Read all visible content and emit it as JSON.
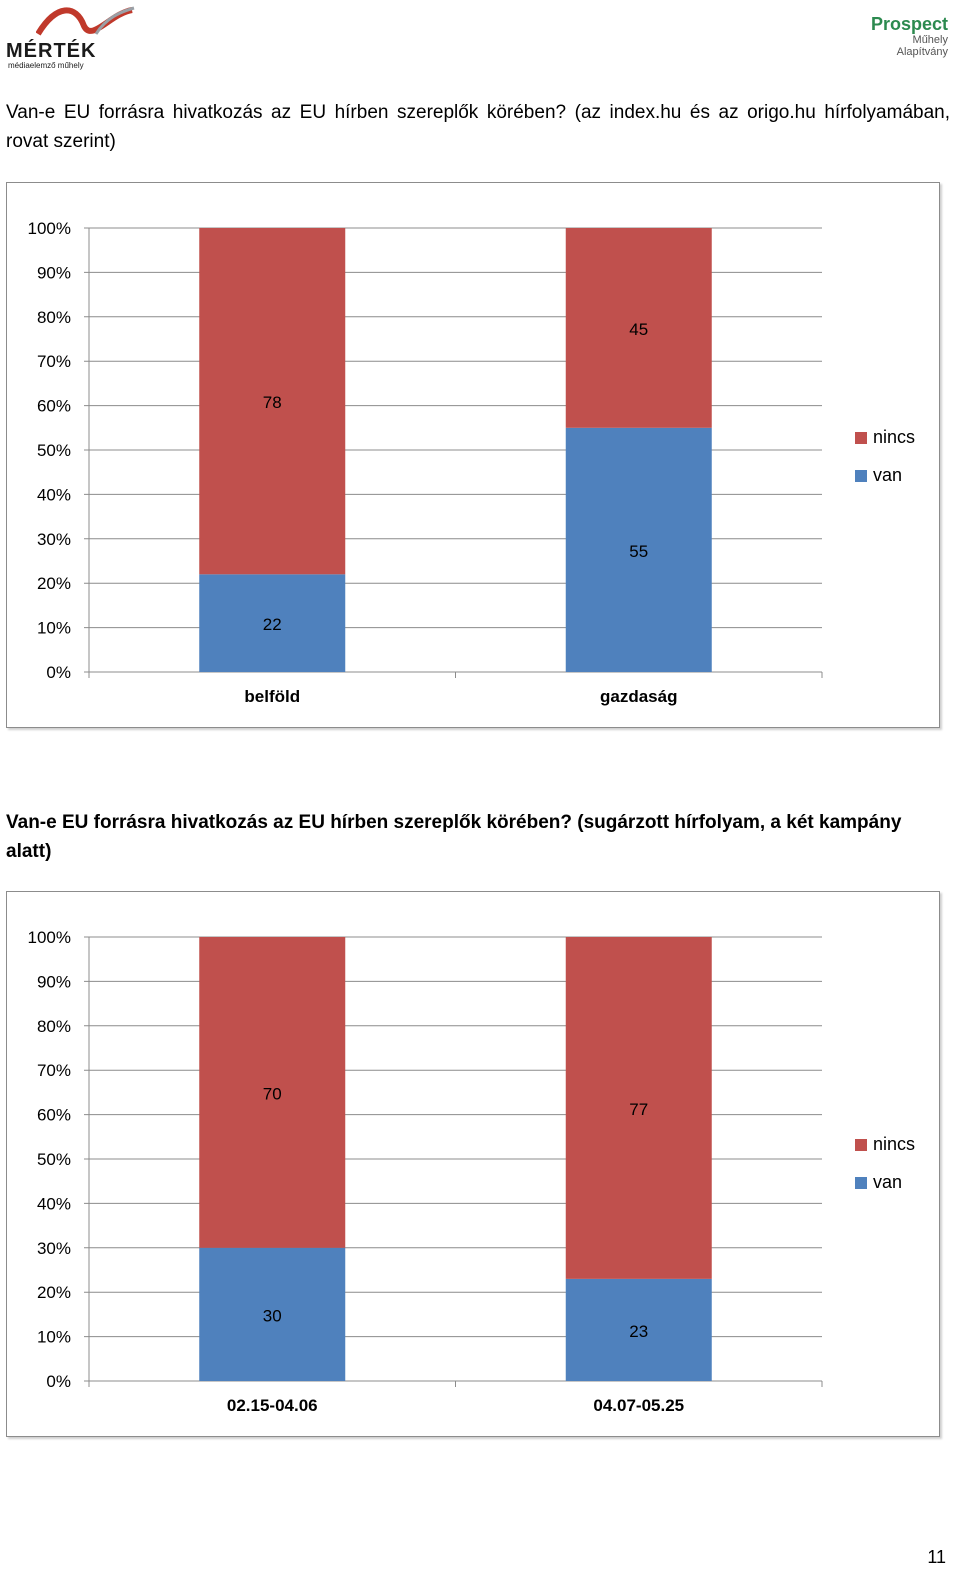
{
  "logos": {
    "left_brand": "MÉRTÉK",
    "left_sub": "médiaelemző műhely",
    "right_line1": "Prospect",
    "right_line2": "Műhely",
    "right_line3": "Alapítvány"
  },
  "heading1": "Van-e EU forrásra hivatkozás az EU hírben szereplők körében? (az index.hu és az origo.hu hírfolyamában, rovat szerint)",
  "heading2": "Van-e EU forrásra hivatkozás az EU hírben szereplők körében? (sugárzott hírfolyam, a két kampány alatt)",
  "page_number": "11",
  "colors": {
    "van": "#4f81bd",
    "nincs": "#c0504d"
  },
  "chart_data": [
    {
      "type": "bar",
      "stacked": true,
      "title": "",
      "categories": [
        "belföld",
        "gazdaság"
      ],
      "series": [
        {
          "name": "van",
          "values": [
            22,
            55
          ]
        },
        {
          "name": "nincs",
          "values": [
            78,
            45
          ]
        }
      ],
      "y_ticks": [
        "0%",
        "10%",
        "20%",
        "30%",
        "40%",
        "50%",
        "60%",
        "70%",
        "80%",
        "90%",
        "100%"
      ],
      "ylim": [
        0,
        100
      ],
      "legend": [
        "nincs",
        "van"
      ],
      "legend_position": "right"
    },
    {
      "type": "bar",
      "stacked": true,
      "title": "",
      "categories": [
        "02.15-04.06",
        "04.07-05.25"
      ],
      "series": [
        {
          "name": "van",
          "values": [
            30,
            23
          ]
        },
        {
          "name": "nincs",
          "values": [
            70,
            77
          ]
        }
      ],
      "y_ticks": [
        "0%",
        "10%",
        "20%",
        "30%",
        "40%",
        "50%",
        "60%",
        "70%",
        "80%",
        "90%",
        "100%"
      ],
      "ylim": [
        0,
        100
      ],
      "legend": [
        "nincs",
        "van"
      ],
      "legend_position": "right"
    }
  ]
}
